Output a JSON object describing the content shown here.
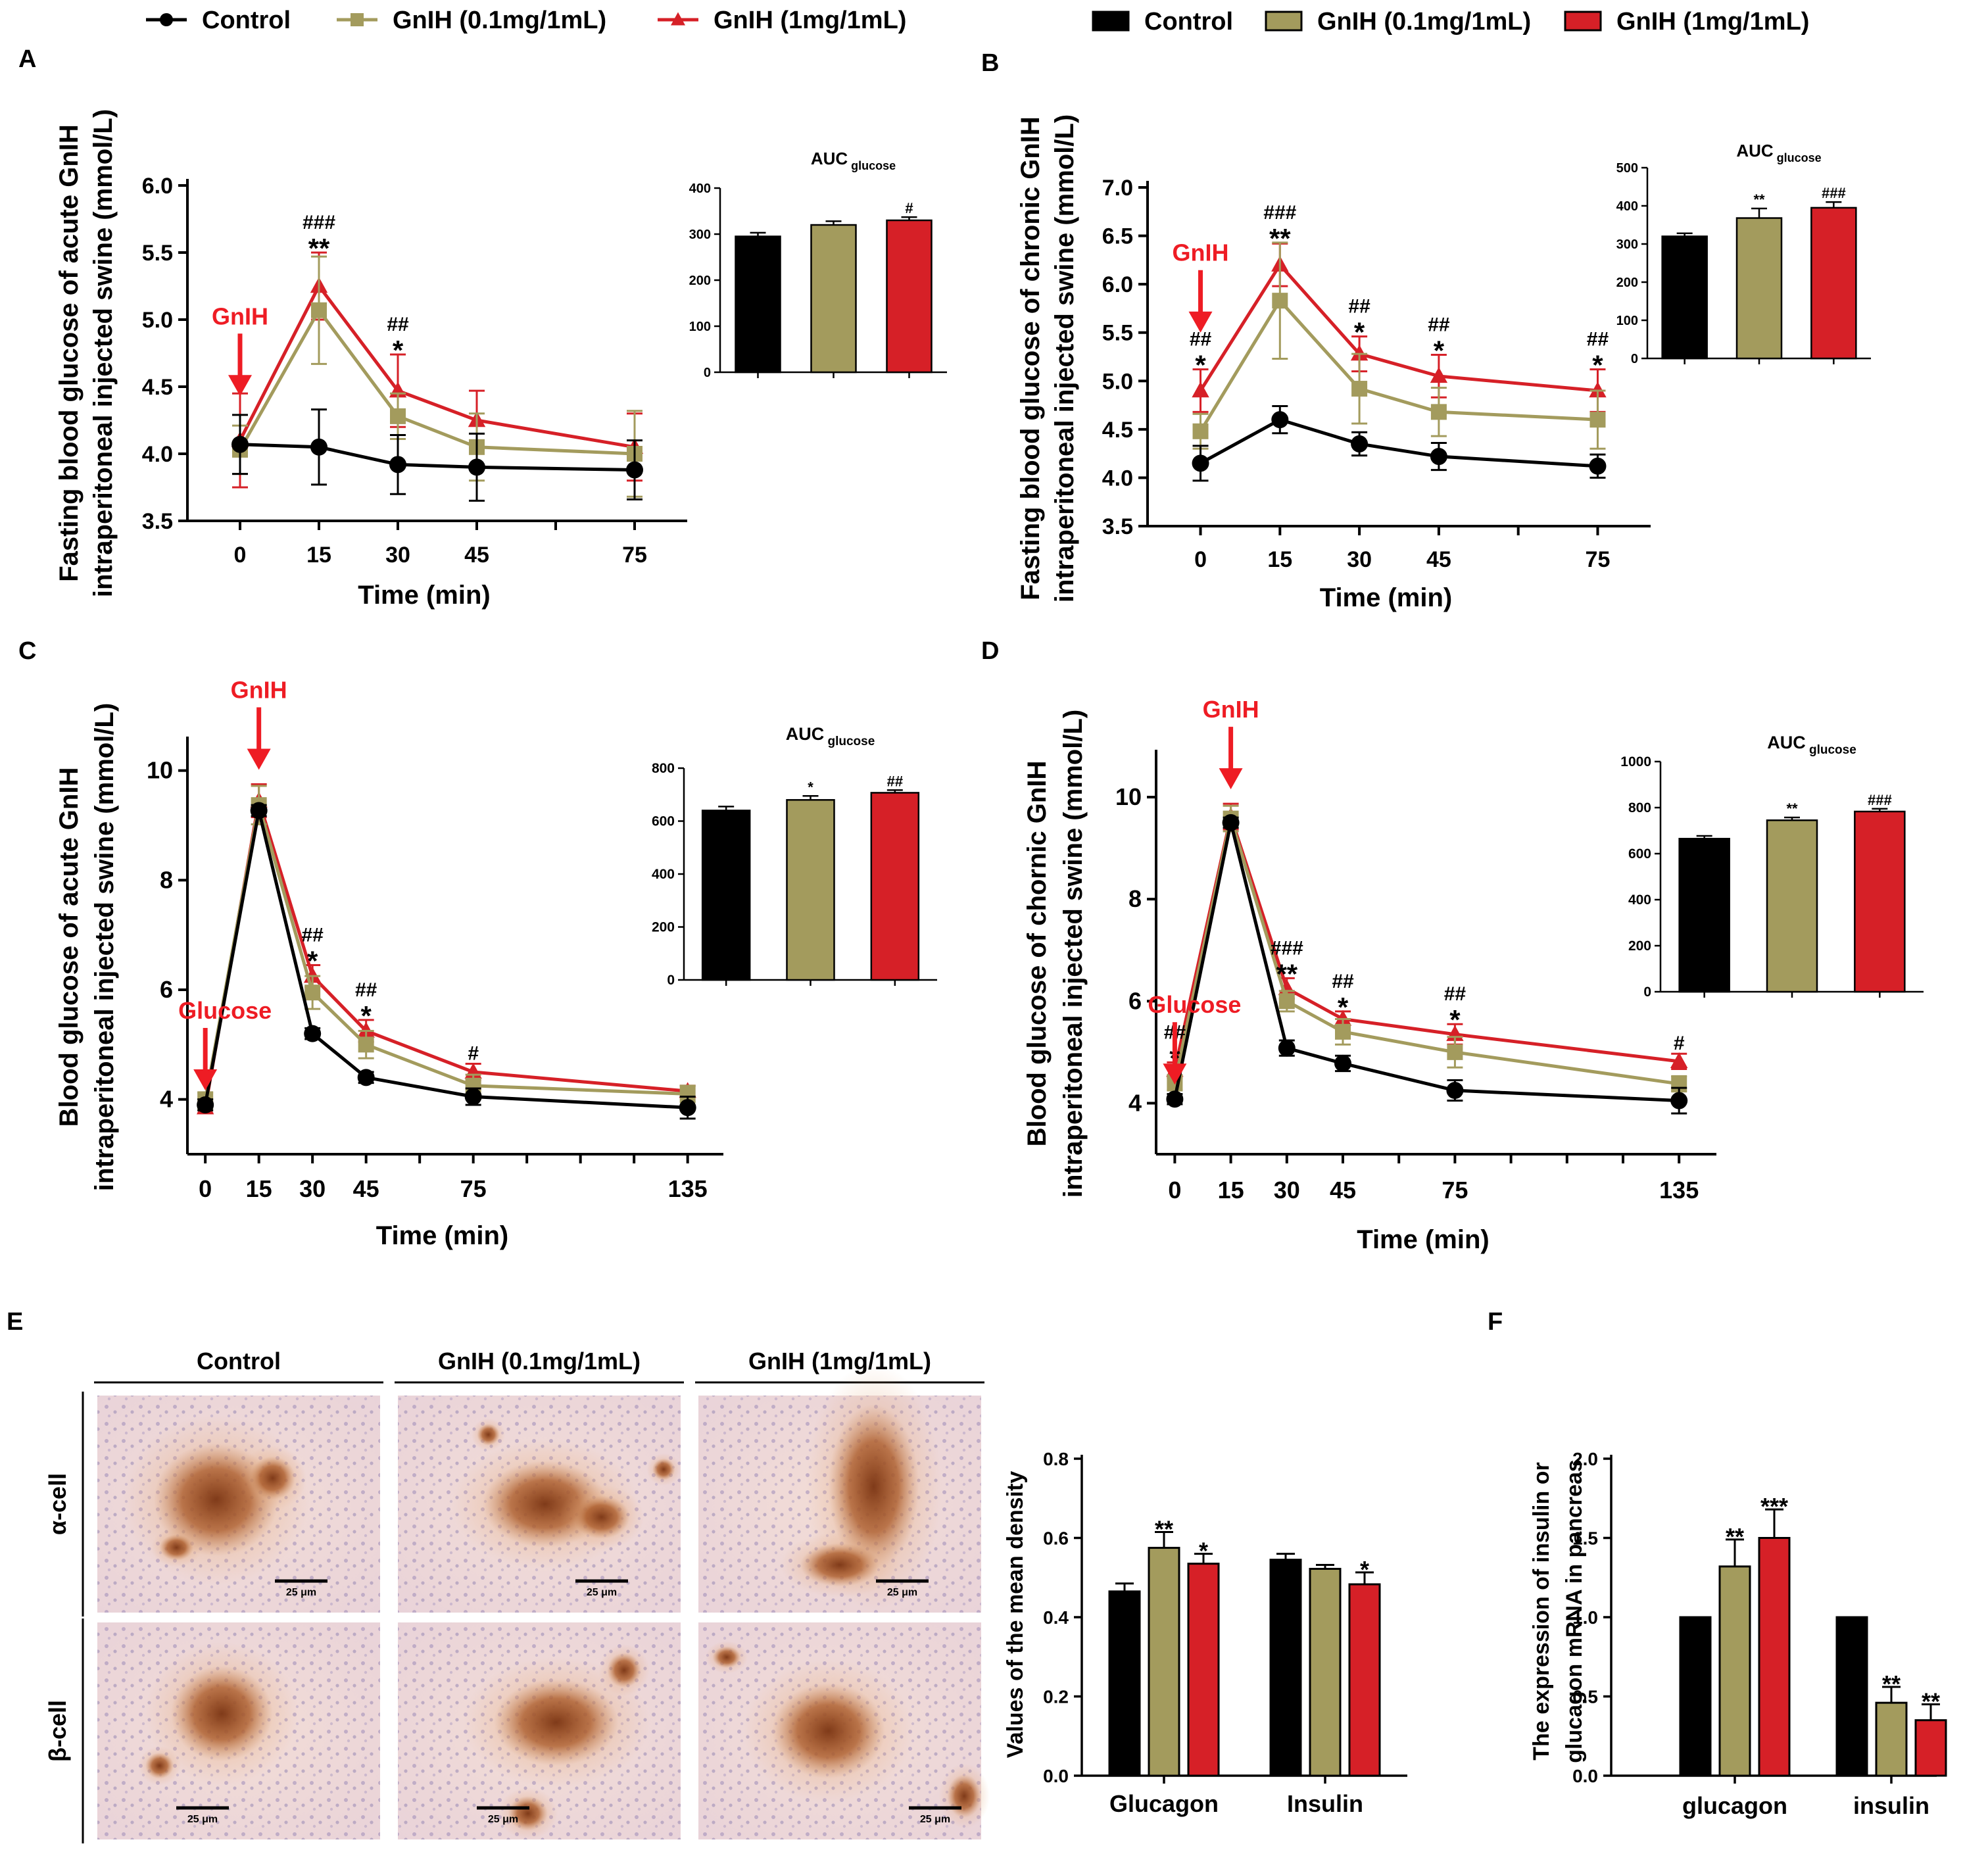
{
  "colors": {
    "control": "#000000",
    "low": "#a39b5d",
    "high": "#d62027",
    "arrow": "#ee1c24"
  },
  "legend_line": [
    "Control",
    "GnIH (0.1mg/1mL)",
    "GnIH (1mg/1mL)"
  ],
  "legend_bar": [
    "Control",
    "GnIH (0.1mg/1mL)",
    "GnIH (1mg/1mL)"
  ],
  "panel_labels": [
    "A",
    "B",
    "C",
    "D",
    "E",
    "F"
  ],
  "chart_data": [
    {
      "id": "A",
      "type": "line",
      "ylabel_lines": [
        "Fasting blood glucose of acute GnIH",
        "intraperitoneal injected swine (mmol/L)"
      ],
      "xlabel": "Time (min)",
      "x": [
        0,
        15,
        30,
        45,
        75
      ],
      "xlim": [
        -10,
        85
      ],
      "ylim": [
        3.5,
        6.0
      ],
      "yticks": [
        3.5,
        4.0,
        4.5,
        5.0,
        5.5,
        6.0
      ],
      "ytick_labels": [
        "3.5",
        "4.0",
        "4.5",
        "5.0",
        "5.5",
        "6.0"
      ],
      "xticks": [
        0,
        15,
        30,
        45,
        75
      ],
      "xtick_labels": [
        "0",
        "15",
        "30",
        "45",
        "75"
      ],
      "series": [
        {
          "name": "Control",
          "values": [
            4.07,
            4.05,
            3.92,
            3.9,
            3.88
          ],
          "err": [
            0.22,
            0.28,
            0.22,
            0.25,
            0.22
          ]
        },
        {
          "name": "GnIH (0.1mg/1mL)",
          "values": [
            4.03,
            5.07,
            4.28,
            4.05,
            4.0
          ],
          "err": [
            0.18,
            0.4,
            0.17,
            0.25,
            0.32
          ]
        },
        {
          "name": "GnIH (1mg/1mL)",
          "values": [
            4.1,
            5.25,
            4.47,
            4.25,
            4.05
          ],
          "err": [
            0.35,
            0.25,
            0.27,
            0.22,
            0.25
          ]
        }
      ],
      "annotations": [
        {
          "x": 15,
          "top": "###",
          "bottom": "**"
        },
        {
          "x": 30,
          "top": "##",
          "bottom": "*"
        }
      ],
      "arrow": {
        "label": "GnIH",
        "x": 0
      },
      "inset": {
        "title": "AUC",
        "title_sub": "glucose",
        "values": [
          295,
          320,
          330
        ],
        "err": [
          8,
          8,
          7
        ],
        "ylim": [
          0,
          400
        ],
        "yticks": [
          0,
          100,
          200,
          300,
          400
        ],
        "ytick_labels": [
          "0",
          "100",
          "200",
          "300",
          "400"
        ],
        "marks": [
          "",
          "",
          "#"
        ]
      }
    },
    {
      "id": "B",
      "type": "line",
      "ylabel_lines": [
        "Fasting blood glucose of chronic GnIH",
        "intraperitoneal injected swine (mmol/L)"
      ],
      "xlabel": "Time (min)",
      "x": [
        0,
        15,
        30,
        45,
        75
      ],
      "xlim": [
        -10,
        85
      ],
      "ylim": [
        3.5,
        7.0
      ],
      "yticks": [
        3.5,
        4.0,
        4.5,
        5.0,
        5.5,
        6.0,
        6.5,
        7.0
      ],
      "ytick_labels": [
        "3.5",
        "4.0",
        "4.5",
        "5.0",
        "5.5",
        "6.0",
        "6.5",
        "7.0"
      ],
      "xticks": [
        0,
        15,
        30,
        45,
        75
      ],
      "xtick_labels": [
        "0",
        "15",
        "30",
        "45",
        "75"
      ],
      "series": [
        {
          "name": "Control",
          "values": [
            4.15,
            4.6,
            4.35,
            4.22,
            4.12
          ],
          "err": [
            0.18,
            0.14,
            0.12,
            0.14,
            0.12
          ]
        },
        {
          "name": "GnIH (0.1mg/1mL)",
          "values": [
            4.48,
            5.83,
            4.92,
            4.68,
            4.6
          ],
          "err": [
            0.18,
            0.6,
            0.36,
            0.25,
            0.3
          ]
        },
        {
          "name": "GnIH (1mg/1mL)",
          "values": [
            4.9,
            6.2,
            5.28,
            5.05,
            4.9
          ],
          "err": [
            0.22,
            0.22,
            0.18,
            0.22,
            0.22
          ]
        }
      ],
      "annotations": [
        {
          "x": 0,
          "top": "##",
          "bottom": "*"
        },
        {
          "x": 15,
          "top": "###",
          "bottom": "**"
        },
        {
          "x": 30,
          "top": "##",
          "bottom": "*"
        },
        {
          "x": 45,
          "top": "##",
          "bottom": "*"
        },
        {
          "x": 75,
          "top": "##",
          "bottom": "*"
        }
      ],
      "arrow": {
        "label": "GnIH",
        "x": 0
      },
      "inset": {
        "title": "AUC",
        "title_sub": "glucose",
        "values": [
          320,
          368,
          395
        ],
        "err": [
          8,
          25,
          15
        ],
        "ylim": [
          0,
          500
        ],
        "yticks": [
          0,
          100,
          200,
          300,
          400,
          500
        ],
        "ytick_labels": [
          "0",
          "100",
          "200",
          "300",
          "400",
          "500"
        ],
        "marks": [
          "",
          "**",
          "###"
        ]
      }
    },
    {
      "id": "C",
      "type": "line",
      "ylabel_lines": [
        "Blood glucose of acute GnIH",
        "intraperitoneal injected swine  (mmol/L)"
      ],
      "xlabel": "Time (min)",
      "x": [
        0,
        15,
        30,
        45,
        75,
        135
      ],
      "xlim": [
        -5,
        145
      ],
      "ylim": [
        3,
        10.5
      ],
      "yticks": [
        4,
        6,
        8,
        10
      ],
      "ytick_labels": [
        "4",
        "6",
        "8",
        "10"
      ],
      "xticks": [
        0,
        15,
        30,
        45,
        75,
        135
      ],
      "xtick_labels": [
        "0",
        "15",
        "30",
        "45",
        "75",
        "135"
      ],
      "series": [
        {
          "name": "Control",
          "values": [
            3.9,
            9.27,
            5.2,
            4.4,
            4.05,
            3.85
          ],
          "err": [
            0.1,
            0.1,
            0.1,
            0.1,
            0.15,
            0.2
          ]
        },
        {
          "name": "GnIH (0.1mg/1mL)",
          "values": [
            3.98,
            9.37,
            5.95,
            5.0,
            4.25,
            4.1
          ],
          "err": [
            0.15,
            0.35,
            0.3,
            0.25,
            0.2,
            0.15
          ]
        },
        {
          "name": "GnIH (1mg/1mL)",
          "values": [
            3.85,
            9.45,
            6.25,
            5.25,
            4.5,
            4.15
          ],
          "err": [
            0.1,
            0.3,
            0.2,
            0.2,
            0.15,
            0.1
          ]
        }
      ],
      "annotations": [
        {
          "x": 30,
          "top": "##",
          "bottom": "*"
        },
        {
          "x": 45,
          "top": "##",
          "bottom": "*"
        },
        {
          "x": 75,
          "top": "#",
          "bottom": ""
        }
      ],
      "arrow": {
        "label": "GnIH",
        "x": 15
      },
      "arrow2": {
        "label": "Glucose",
        "x": 0
      },
      "inset": {
        "title": "AUC",
        "title_sub": "glucose",
        "values": [
          640,
          680,
          707
        ],
        "err": [
          15,
          15,
          10
        ],
        "ylim": [
          0,
          800
        ],
        "yticks": [
          0,
          200,
          400,
          600,
          800
        ],
        "ytick_labels": [
          "0",
          "200",
          "400",
          "600",
          "800"
        ],
        "marks": [
          "",
          "*",
          "##"
        ]
      }
    },
    {
      "id": "D",
      "type": "line",
      "ylabel_lines": [
        "Blood glucose of chornic GnIH",
        "intraperitoneal injected swine  (mmol/L)"
      ],
      "xlabel": "Time (min)",
      "x": [
        0,
        15,
        30,
        45,
        75,
        135
      ],
      "xlim": [
        -5,
        145
      ],
      "ylim": [
        3,
        10.8
      ],
      "yticks": [
        4,
        6,
        8,
        10
      ],
      "ytick_labels": [
        "4",
        "6",
        "8",
        "10"
      ],
      "xticks": [
        0,
        15,
        30,
        45,
        75,
        135
      ],
      "xtick_labels": [
        "0",
        "15",
        "30",
        "45",
        "75",
        "135"
      ],
      "series": [
        {
          "name": "Control",
          "values": [
            4.08,
            9.5,
            5.08,
            4.78,
            4.25,
            4.05
          ],
          "err": [
            0.1,
            0.1,
            0.15,
            0.15,
            0.2,
            0.25
          ]
        },
        {
          "name": "GnIH (0.1mg/1mL)",
          "values": [
            4.4,
            9.58,
            6.0,
            5.4,
            5.0,
            4.38
          ],
          "err": [
            0.15,
            0.25,
            0.2,
            0.25,
            0.3,
            0.15
          ]
        },
        {
          "name": "GnIH (1mg/1mL)",
          "values": [
            4.65,
            9.62,
            6.25,
            5.65,
            5.35,
            4.82
          ],
          "err": [
            0.15,
            0.25,
            0.2,
            0.15,
            0.2,
            0.15
          ]
        }
      ],
      "annotations": [
        {
          "x": 0,
          "top": "##",
          "bottom": "*"
        },
        {
          "x": 30,
          "top": "###",
          "bottom": "**"
        },
        {
          "x": 45,
          "top": "##",
          "bottom": "*"
        },
        {
          "x": 75,
          "top": "##",
          "bottom": "*"
        },
        {
          "x": 135,
          "top": "#",
          "bottom": ""
        }
      ],
      "arrow": {
        "label": "GnIH",
        "x": 15
      },
      "arrow2": {
        "label": "Glucose",
        "x": 0
      },
      "inset": {
        "title": "AUC",
        "title_sub": "glucose",
        "values": [
          665,
          745,
          783
        ],
        "err": [
          12,
          12,
          12
        ],
        "ylim": [
          0,
          1000
        ],
        "yticks": [
          0,
          200,
          400,
          600,
          800,
          1000
        ],
        "ytick_labels": [
          "0",
          "200",
          "400",
          "600",
          "800",
          "1000"
        ],
        "marks": [
          "",
          "**",
          "###"
        ]
      }
    },
    {
      "id": "E",
      "type": "bar",
      "ylabel": "Values of the mean density",
      "categories": [
        "Glucagon",
        "Insulin"
      ],
      "ylim": [
        0,
        0.8
      ],
      "yticks": [
        0.0,
        0.2,
        0.4,
        0.6,
        0.8
      ],
      "ytick_labels": [
        "0.0",
        "0.2",
        "0.4",
        "0.6",
        "0.8"
      ],
      "series": [
        {
          "name": "Control",
          "values": [
            0.465,
            0.545
          ],
          "err": [
            0.02,
            0.015
          ]
        },
        {
          "name": "GnIH (0.1mg/1mL)",
          "values": [
            0.575,
            0.522
          ],
          "err": [
            0.04,
            0.01
          ]
        },
        {
          "name": "GnIH (1mg/1mL)",
          "values": [
            0.535,
            0.483
          ],
          "err": [
            0.025,
            0.03
          ]
        }
      ],
      "marks": [
        [
          "",
          "**",
          "*"
        ],
        [
          "",
          "",
          "*"
        ]
      ]
    },
    {
      "id": "F",
      "type": "bar",
      "ylabel_lines": [
        "The expression of insulin or",
        "glucagon mRNA in  pancreas"
      ],
      "categories": [
        "glucagon",
        "insulin"
      ],
      "ylim": [
        0,
        2.0
      ],
      "yticks": [
        0.0,
        0.5,
        1.0,
        1.5,
        2.0
      ],
      "ytick_labels": [
        "0.0",
        "0.5",
        "1.0",
        "1.5",
        "2.0"
      ],
      "series": [
        {
          "name": "Control",
          "values": [
            1.0,
            1.0
          ],
          "err": [
            0,
            0
          ]
        },
        {
          "name": "GnIH (0.1mg/1mL)",
          "values": [
            1.32,
            0.46
          ],
          "err": [
            0.17,
            0.1
          ]
        },
        {
          "name": "GnIH (1mg/1mL)",
          "values": [
            1.5,
            0.35
          ],
          "err": [
            0.18,
            0.1
          ]
        }
      ],
      "marks": [
        [
          "",
          "**",
          "***"
        ],
        [
          "",
          "**",
          "**"
        ]
      ]
    }
  ],
  "histology": {
    "columns": [
      "Control",
      "GnIH (0.1mg/1mL)",
      "GnIH (1mg/1mL)"
    ],
    "rows": [
      "α-cell",
      "β-cell"
    ],
    "scale_bar": "25 μm"
  }
}
